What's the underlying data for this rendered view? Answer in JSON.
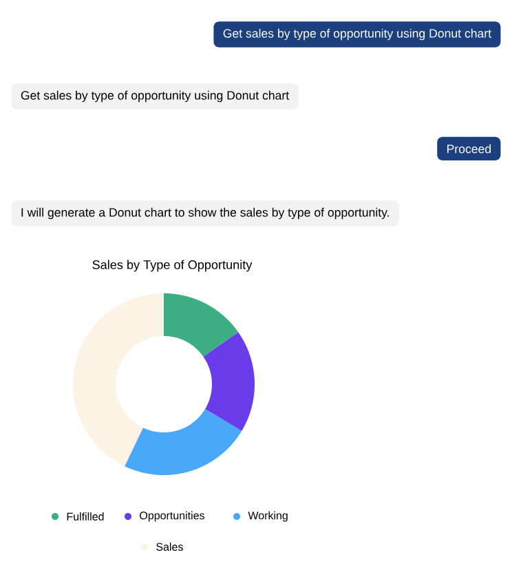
{
  "chart_data": {
    "type": "donut",
    "title": "Sales by Type of Opportunity",
    "categories": [
      "Fulfilled",
      "Opportunities",
      "Working",
      "Sales"
    ],
    "values": [
      15.3,
      18.3,
      23.5,
      42.9
    ],
    "colors": [
      "#3dae84",
      "#6a3be8",
      "#4aa8fb",
      "#fdf3e4"
    ],
    "legend": "bottom",
    "annotations": [
      "Get sales by type of opportunity using Donut chart",
      "Get sales by type of opportunity using Donut chart",
      "Proceed",
      "I will generate a Donut chart to show the sales by type of opportunity."
    ]
  }
}
